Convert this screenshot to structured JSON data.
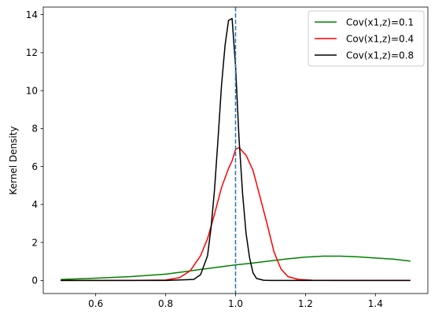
{
  "chart_data": {
    "type": "line",
    "title": "",
    "xlabel": "",
    "ylabel": "Kernel Density",
    "xlim": [
      0.45,
      1.55
    ],
    "ylim": [
      -0.69,
      14.4
    ],
    "xticks": [
      0.6,
      0.8,
      1.0,
      1.2,
      1.4
    ],
    "xtick_labels": [
      "0.6",
      "0.8",
      "1.0",
      "1.2",
      "1.4"
    ],
    "yticks": [
      0,
      2,
      4,
      6,
      8,
      10,
      12,
      14
    ],
    "ytick_labels": [
      "0",
      "2",
      "4",
      "6",
      "8",
      "10",
      "12",
      "14"
    ],
    "grid": false,
    "legend_position": "top-right",
    "reference_line": {
      "x": 1.0,
      "style": "dashed",
      "color": "#1f77b4"
    },
    "series": [
      {
        "name": "Cov(x1,z)=0.1",
        "color": "#008000",
        "x": [
          0.5,
          0.6,
          0.7,
          0.8,
          0.85,
          0.9,
          0.95,
          1.0,
          1.05,
          1.1,
          1.15,
          1.2,
          1.25,
          1.3,
          1.35,
          1.4,
          1.45,
          1.5
        ],
        "y": [
          0.05,
          0.12,
          0.2,
          0.33,
          0.45,
          0.58,
          0.7,
          0.82,
          0.92,
          1.03,
          1.14,
          1.23,
          1.28,
          1.28,
          1.24,
          1.18,
          1.12,
          1.02
        ]
      },
      {
        "name": "Cov(x1,z)=0.4",
        "color": "#ff0000",
        "x": [
          0.5,
          0.7,
          0.8,
          0.84,
          0.87,
          0.9,
          0.92,
          0.94,
          0.96,
          0.98,
          0.99,
          1.0,
          1.01,
          1.03,
          1.05,
          1.07,
          1.09,
          1.11,
          1.13,
          1.15,
          1.18,
          1.22,
          1.3,
          1.5
        ],
        "y": [
          0.0,
          0.0,
          0.02,
          0.15,
          0.5,
          1.3,
          2.2,
          3.5,
          4.9,
          5.9,
          6.3,
          6.9,
          7.0,
          6.6,
          5.8,
          4.4,
          3.0,
          1.5,
          0.6,
          0.2,
          0.05,
          0.01,
          0.0,
          0.0
        ]
      },
      {
        "name": "Cov(x1,z)=0.8",
        "color": "#000000",
        "x": [
          0.5,
          0.8,
          0.88,
          0.9,
          0.92,
          0.93,
          0.94,
          0.95,
          0.96,
          0.97,
          0.98,
          0.99,
          1.0,
          1.01,
          1.02,
          1.03,
          1.04,
          1.05,
          1.06,
          1.08,
          1.1,
          1.2,
          1.5
        ],
        "y": [
          0.0,
          0.0,
          0.05,
          0.3,
          1.3,
          2.8,
          4.8,
          7.5,
          10.3,
          12.4,
          13.7,
          13.8,
          11.3,
          7.5,
          4.6,
          2.5,
          1.2,
          0.4,
          0.1,
          0.01,
          0.0,
          0.0,
          0.0
        ]
      }
    ]
  }
}
